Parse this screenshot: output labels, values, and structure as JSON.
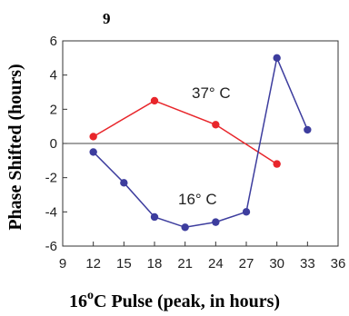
{
  "chart_data": {
    "type": "line",
    "panel_label": "9",
    "xlabel_prefix": "16",
    "xlabel_degree": "o",
    "xlabel_suffix": "C Pulse (peak, in hours)",
    "ylabel": "Phase Shifted (hours)",
    "xlim": [
      9,
      36
    ],
    "ylim": [
      -6,
      6
    ],
    "xticks": [
      "9",
      "12",
      "15",
      "18",
      "21",
      "24",
      "27",
      "30",
      "33",
      "36"
    ],
    "yticks": [
      "-6",
      "-4",
      "-2",
      "0",
      "2",
      "4",
      "6"
    ],
    "zero_line": true,
    "series": [
      {
        "name": "37° C",
        "color": "#e8262b",
        "x": [
          12,
          18,
          24,
          30
        ],
        "y": [
          0.4,
          2.5,
          1.1,
          -1.2
        ]
      },
      {
        "name": "16° C",
        "color": "#3d3d9e",
        "x": [
          12,
          15,
          18,
          21,
          24,
          27,
          30,
          33
        ],
        "y": [
          -0.5,
          -2.3,
          -4.3,
          -4.9,
          -4.6,
          -4.0,
          5.0,
          0.8
        ]
      }
    ]
  }
}
